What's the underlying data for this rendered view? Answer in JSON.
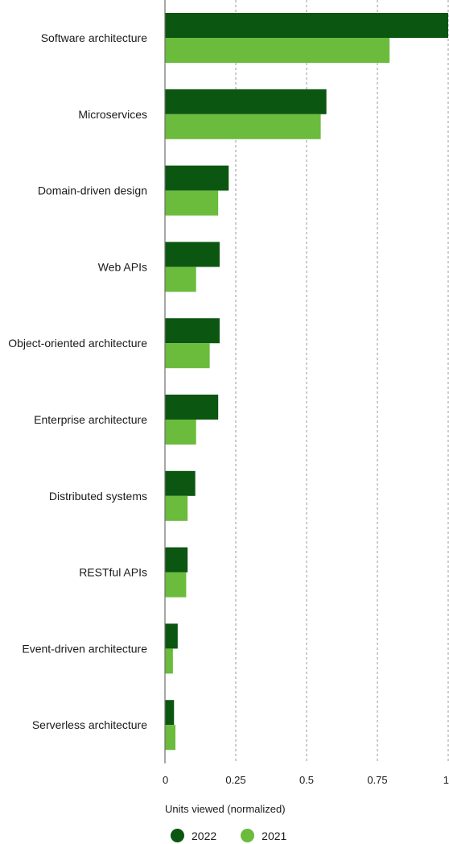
{
  "chart_data": {
    "type": "bar",
    "orientation": "horizontal",
    "categories": [
      "Software architecture",
      "Microservices",
      "Domain-driven design",
      "Web APIs",
      "Object-oriented architecture",
      "Enterprise architecture",
      "Distributed systems",
      "RESTful APIs",
      "Event-driven architecture",
      "Serverless architecture"
    ],
    "series": [
      {
        "name": "2022",
        "color": "#0b5611",
        "values": [
          1.0,
          0.57,
          0.225,
          0.193,
          0.193,
          0.188,
          0.107,
          0.08,
          0.045,
          0.032
        ]
      },
      {
        "name": "2021",
        "color": "#6bbb3d",
        "values": [
          0.793,
          0.55,
          0.188,
          0.11,
          0.158,
          0.11,
          0.08,
          0.075,
          0.028,
          0.037
        ]
      }
    ],
    "xlabel": "Units viewed (normalized)",
    "ylabel": "",
    "xlim": [
      0,
      1
    ],
    "x_ticks": [
      "0",
      "0.25",
      "0.5",
      "0.75",
      "1"
    ],
    "grid": "vertical dashed",
    "legend_position": "bottom"
  }
}
